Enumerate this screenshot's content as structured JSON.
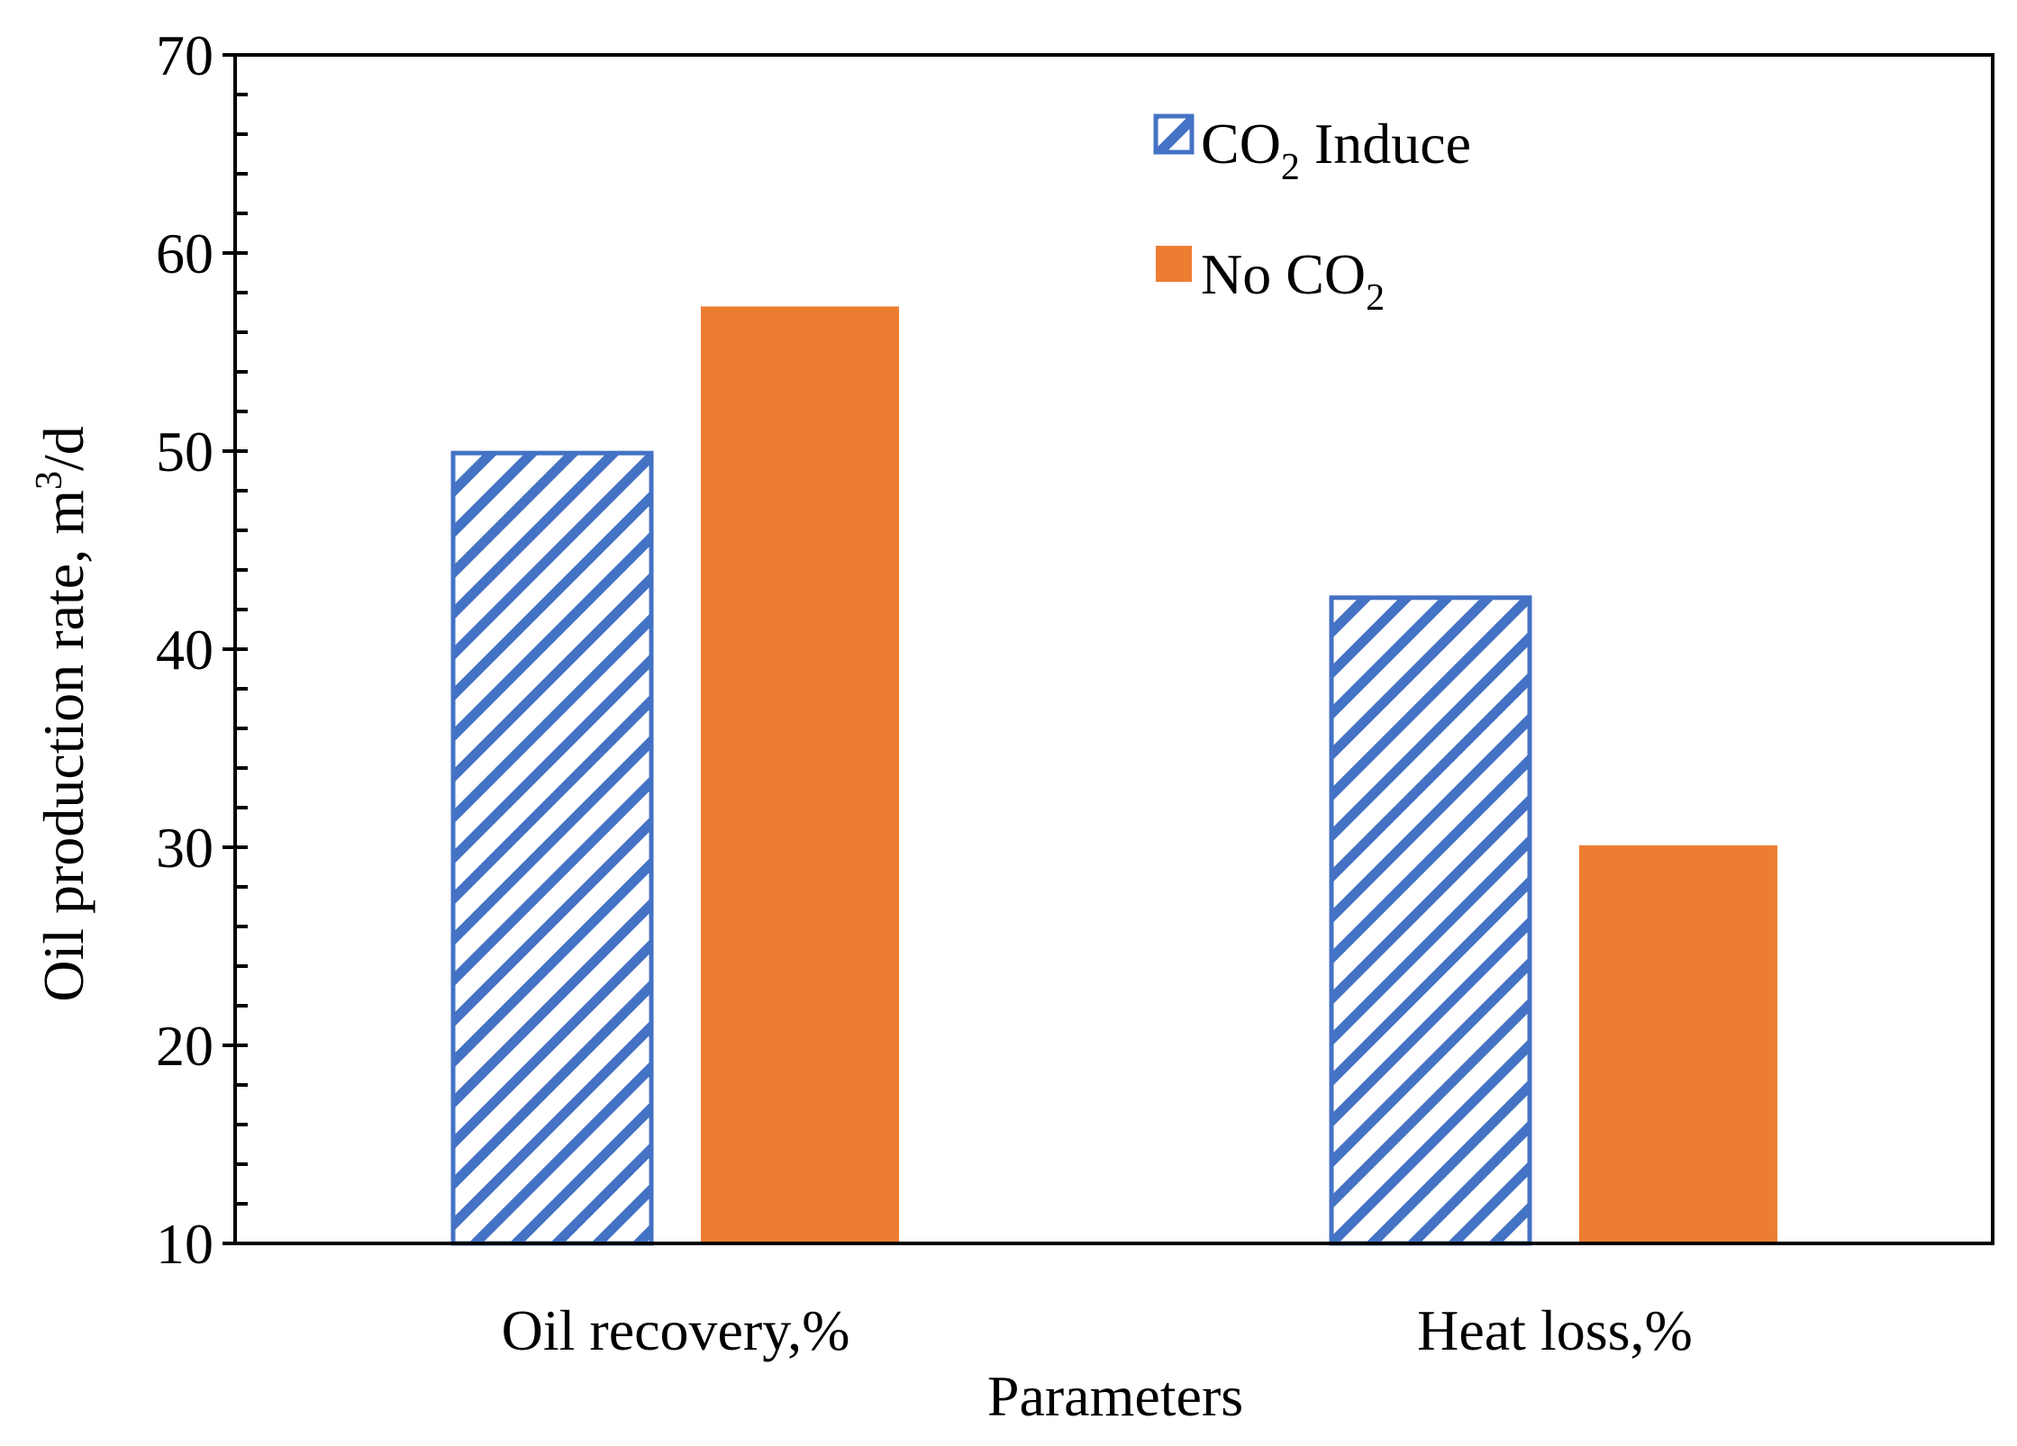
{
  "chart_data": {
    "type": "bar",
    "title": "",
    "xlabel": "Parameters",
    "ylabel": "Oil production rate,   m",
    "ylabel_sup": "3",
    "ylabel_suffix": "/d",
    "ylim": [
      10,
      70
    ],
    "yticks": [
      10,
      20,
      30,
      40,
      50,
      60,
      70
    ],
    "ytick_labels": [
      "10",
      "20",
      "30",
      "40",
      "50",
      "60",
      "70"
    ],
    "minor_tick_step": 2,
    "grid": false,
    "legend_position": "top-right",
    "categories": [
      "Oil recovery,%",
      "Heat loss,%"
    ],
    "series": [
      {
        "name": "CO2 Induce",
        "name_main": "CO",
        "name_sub": "2",
        "name_tail": " Induce",
        "color": "#4472C4",
        "fill": "hatch",
        "values": [
          49.9,
          42.6
        ]
      },
      {
        "name": "No CO2",
        "name_main": "No CO",
        "name_sub": "2",
        "name_tail": "",
        "color": "#ED7D31",
        "fill": "solid",
        "values": [
          57.3,
          30.1
        ]
      }
    ]
  }
}
